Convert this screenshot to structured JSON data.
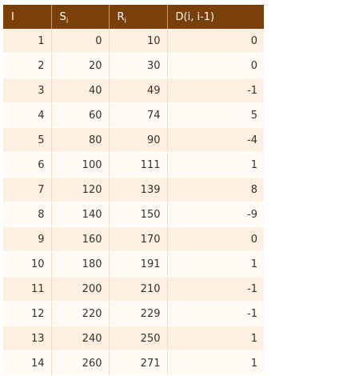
{
  "table": {
    "headers": [
      {
        "main": "I",
        "sub": ""
      },
      {
        "main": "S",
        "sub": "i"
      },
      {
        "main": "R",
        "sub": "i"
      },
      {
        "main": "D(i, i-1)",
        "sub": ""
      }
    ],
    "rows": [
      [
        "1",
        "0",
        "10",
        "0"
      ],
      [
        "2",
        "20",
        "30",
        "0"
      ],
      [
        "3",
        "40",
        "49",
        "-1"
      ],
      [
        "4",
        "60",
        "74",
        "5"
      ],
      [
        "5",
        "80",
        "90",
        "-4"
      ],
      [
        "6",
        "100",
        "111",
        "1"
      ],
      [
        "7",
        "120",
        "139",
        "8"
      ],
      [
        "8",
        "140",
        "150",
        "-9"
      ],
      [
        "9",
        "160",
        "170",
        "0"
      ],
      [
        "10",
        "180",
        "191",
        "1"
      ],
      [
        "11",
        "200",
        "210",
        "-1"
      ],
      [
        "12",
        "220",
        "229",
        "-1"
      ],
      [
        "13",
        "240",
        "250",
        "1"
      ],
      [
        "14",
        "260",
        "271",
        "1"
      ]
    ],
    "colors": {
      "header_bg": "#7b3f0a",
      "row_odd": "#fdf0e0",
      "row_even": "#fffaf3"
    }
  }
}
